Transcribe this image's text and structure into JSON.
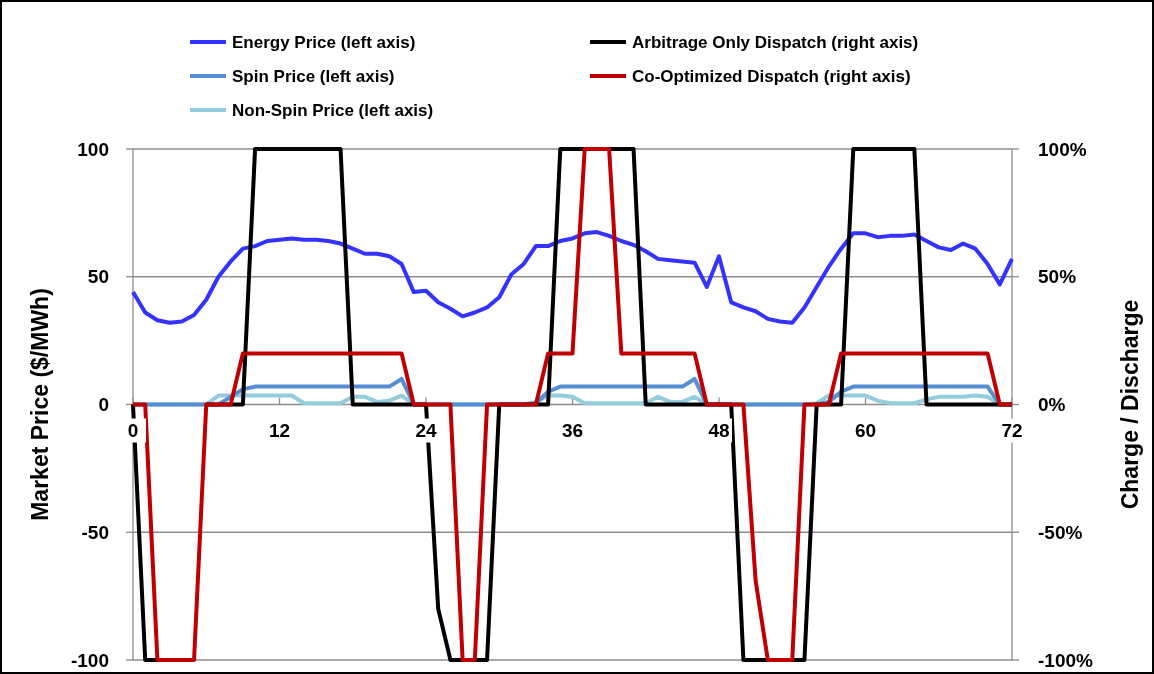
{
  "chart_data": {
    "type": "line",
    "xlabel": null,
    "ylabel": "Market Price ($/MWh)",
    "y2label": "Charge / Discharge",
    "x": [
      0,
      1,
      2,
      3,
      4,
      5,
      6,
      7,
      8,
      9,
      10,
      11,
      12,
      13,
      14,
      15,
      16,
      17,
      18,
      19,
      20,
      21,
      22,
      23,
      24,
      25,
      26,
      27,
      28,
      29,
      30,
      31,
      32,
      33,
      34,
      35,
      36,
      37,
      38,
      39,
      40,
      41,
      42,
      43,
      44,
      45,
      46,
      47,
      48,
      49,
      50,
      51,
      52,
      53,
      54,
      55,
      56,
      57,
      58,
      59,
      60,
      61,
      62,
      63,
      64,
      65,
      66,
      67,
      68,
      69,
      70,
      71,
      72
    ],
    "xlim": [
      0,
      72
    ],
    "xticks": [
      0,
      12,
      24,
      36,
      48,
      60,
      72
    ],
    "ylim": [
      -100,
      100
    ],
    "yticks": [
      -100,
      -50,
      0,
      50,
      100
    ],
    "y2lim": [
      -100,
      100
    ],
    "y2ticks": [
      {
        "value": -100,
        "label": "-100%"
      },
      {
        "value": -50,
        "label": "-50%"
      },
      {
        "value": 0,
        "label": "0%"
      },
      {
        "value": 50,
        "label": "50%"
      },
      {
        "value": 100,
        "label": "100%"
      }
    ],
    "grid": "y",
    "legend": "top",
    "series": [
      {
        "name": "Energy Price (left axis)",
        "color": "#3333ff",
        "values": [
          44,
          36,
          33,
          32,
          32.5,
          35,
          41,
          50,
          56,
          61,
          62,
          64,
          64.5,
          65,
          64.5,
          64.5,
          64,
          63,
          61,
          59,
          59,
          58,
          55,
          44,
          44.5,
          40,
          37.5,
          34.5,
          36,
          38,
          42,
          51,
          55,
          62,
          62,
          64,
          65,
          67,
          67.5,
          66,
          64,
          62.5,
          60,
          57,
          56.5,
          56,
          55.5,
          46,
          58,
          40,
          38,
          36.5,
          33.5,
          32.5,
          32,
          38,
          46,
          54,
          61,
          67,
          67,
          65.5,
          66,
          66,
          66.5,
          64,
          61.5,
          60.5,
          63,
          61,
          55,
          47,
          57
        ]
      },
      {
        "name": "Arbitrage Only Dispatch (right axis)",
        "color": "#000000",
        "axis": "y2",
        "values": [
          0,
          -100,
          -100,
          null,
          null,
          null,
          0,
          0,
          0,
          0,
          100,
          100,
          100,
          100,
          100,
          100,
          100,
          100,
          0,
          0,
          0,
          0,
          0,
          0,
          0,
          -80,
          -100,
          -100,
          -100,
          -100,
          0,
          0,
          0,
          0,
          0,
          100,
          100,
          100,
          null,
          100,
          100,
          100,
          0,
          0,
          0,
          0,
          0,
          0,
          0,
          0,
          -100,
          -100,
          -100,
          null,
          -100,
          -100,
          0,
          0,
          0,
          100,
          100,
          100,
          100,
          100,
          100,
          0,
          0,
          0,
          0,
          0,
          0,
          0,
          0
        ]
      },
      {
        "name": "Spin Price (left axis)",
        "color": "#558ed5",
        "values": [
          0,
          0,
          0,
          0,
          0,
          0,
          0,
          0,
          3,
          6,
          7,
          7,
          7,
          7,
          7,
          7,
          7,
          7,
          7,
          7,
          7,
          7,
          10,
          0,
          0,
          0,
          0,
          0,
          0,
          0,
          0,
          0,
          0,
          0.5,
          5,
          7,
          7,
          7,
          7,
          7,
          7,
          7,
          7,
          7,
          7,
          7,
          10,
          0,
          0,
          0,
          0,
          0,
          0,
          0,
          0,
          0,
          0,
          1,
          5,
          7,
          7,
          7,
          7,
          7,
          7,
          7,
          7,
          7,
          7,
          7,
          7,
          0,
          0
        ]
      },
      {
        "name": "Co-Optimized Dispatch (right axis)",
        "color": "#c00000",
        "axis": "y2",
        "values": [
          0,
          0,
          -100,
          -100,
          -100,
          -100,
          0,
          0,
          0,
          20,
          20,
          20,
          20,
          20,
          20,
          20,
          20,
          20,
          20,
          20,
          20,
          20,
          20,
          0,
          0,
          0,
          0,
          -100,
          -100,
          0,
          0,
          0,
          0,
          0,
          20,
          20,
          20,
          100,
          100,
          100,
          20,
          20,
          20,
          20,
          20,
          20,
          20,
          0,
          0,
          0,
          0,
          -69,
          -100,
          -100,
          -100,
          0,
          0,
          0,
          20,
          20,
          20,
          20,
          20,
          20,
          20,
          20,
          20,
          20,
          20,
          20,
          20,
          0,
          0
        ]
      },
      {
        "name": "Non-Spin Price (left axis)",
        "color": "#93cddd",
        "values": [
          0,
          0,
          0,
          0,
          0,
          0,
          0,
          3.5,
          3.5,
          3.5,
          3.5,
          3.5,
          3.5,
          3.5,
          0.5,
          0.5,
          0.5,
          0.5,
          3,
          3,
          1,
          1.5,
          3.5,
          0,
          0,
          0,
          0,
          0,
          0,
          0,
          0,
          0,
          0,
          1,
          3.5,
          3.5,
          3,
          0.5,
          0.5,
          0.5,
          0.5,
          0.5,
          0.5,
          3,
          1,
          1,
          3,
          0,
          0,
          0,
          0,
          0,
          0,
          0,
          0,
          0,
          0.5,
          3.5,
          3.5,
          3.5,
          3.5,
          1.5,
          0.5,
          0.5,
          0.5,
          2,
          3,
          3,
          3,
          3.5,
          3,
          0,
          0
        ]
      }
    ]
  }
}
